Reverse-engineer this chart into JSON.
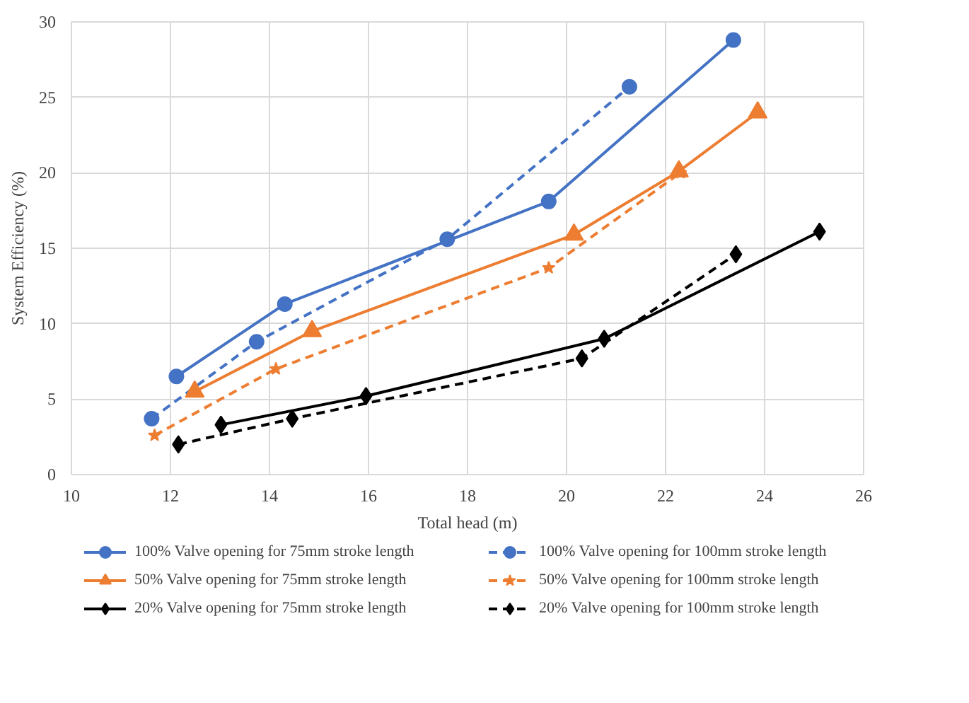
{
  "chart_data": {
    "type": "line",
    "xlabel": "Total head (m)",
    "ylabel": "System Efficiency (%)",
    "xlim": [
      10,
      26
    ],
    "xticks": [
      10,
      12,
      14,
      16,
      18,
      20,
      22,
      24,
      26
    ],
    "ylim": [
      0,
      30
    ],
    "yticks": [
      0,
      5,
      10,
      15,
      20,
      25,
      30
    ],
    "grid": true,
    "legend": "bottom",
    "series": [
      {
        "name": "100% Valve opening for 75mm stroke length",
        "color": "#4472c4",
        "marker": "circle",
        "line_style": "solid",
        "x": [
          12.12,
          14.31,
          19.64,
          23.37
        ],
        "values": [
          6.5,
          11.3,
          18.1,
          28.8
        ]
      },
      {
        "name": "100% Valve opening for 100mm stroke length",
        "color": "#4472c4",
        "marker": "circle",
        "line_style": "dashed",
        "x": [
          11.62,
          13.74,
          17.59,
          21.27
        ],
        "values": [
          3.7,
          8.8,
          15.6,
          25.7
        ]
      },
      {
        "name": "50% Valve opening for 75mm stroke length",
        "color": "#ed7d31",
        "marker": "triangle",
        "line_style": "solid",
        "x": [
          12.49,
          14.86,
          20.15,
          22.27,
          23.86
        ],
        "values": [
          5.5,
          9.5,
          15.9,
          20.1,
          24.0
        ]
      },
      {
        "name": "50% Valve opening for 100mm stroke length",
        "color": "#ed7d31",
        "marker": "star",
        "line_style": "dashed",
        "x": [
          11.68,
          14.13,
          19.64,
          22.3
        ],
        "values": [
          2.6,
          7.0,
          13.7,
          20.0
        ]
      },
      {
        "name": "20% Valve opening for 75mm stroke length",
        "color": "#000000",
        "marker": "diamond",
        "line_style": "solid",
        "x": [
          13.02,
          15.95,
          20.76,
          25.11
        ],
        "values": [
          3.3,
          5.2,
          9.0,
          16.1
        ]
      },
      {
        "name": "20% Valve opening for 100mm stroke length",
        "color": "#000000",
        "marker": "diamond",
        "line_style": "dashed",
        "x": [
          12.16,
          14.46,
          20.31,
          23.42
        ],
        "values": [
          2.0,
          3.7,
          7.7,
          14.6
        ]
      }
    ]
  }
}
